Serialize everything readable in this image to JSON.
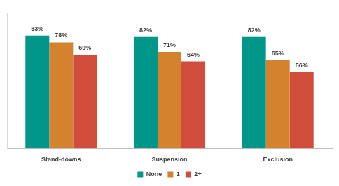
{
  "chart_data": {
    "type": "bar",
    "categories": [
      "Stand-downs",
      "Suspension",
      "Exclusion"
    ],
    "series": [
      {
        "name": "None",
        "color": "#00978a",
        "values": [
          83,
          82,
          82
        ],
        "value_labels": [
          "83%",
          "82%",
          "82%"
        ]
      },
      {
        "name": "1",
        "color": "#d5822f",
        "values": [
          78,
          71,
          65
        ],
        "value_labels": [
          "78%",
          "71%",
          "65%"
        ]
      },
      {
        "name": "2+",
        "color": "#cf4d3a",
        "values": [
          69,
          64,
          56
        ],
        "value_labels": [
          "69%",
          "64%",
          "56%"
        ]
      }
    ],
    "ylim": [
      0,
      100
    ],
    "data_labels": true,
    "tick_labels": "x",
    "legend": "bottom",
    "grid": false
  }
}
